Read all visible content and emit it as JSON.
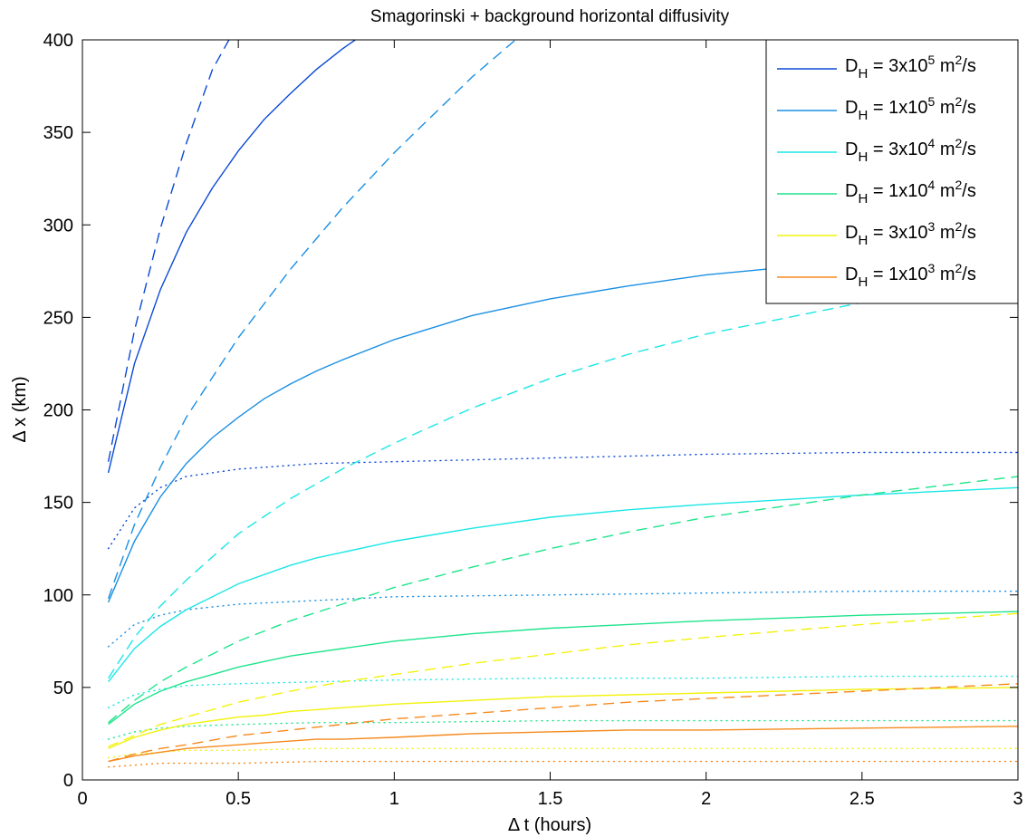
{
  "chart_data": {
    "type": "line",
    "title": "Smagorinski + background horizontal diffusivity",
    "xlabel": "Δ t (hours)",
    "ylabel": "Δ x (km)",
    "xlim": [
      0,
      3
    ],
    "ylim": [
      0,
      400
    ],
    "xticks": [
      0,
      0.5,
      1,
      1.5,
      2,
      2.5,
      3
    ],
    "xtick_labels": [
      "0",
      "0.5",
      "1",
      "1.5",
      "2",
      "2.5",
      "3"
    ],
    "yticks": [
      0,
      50,
      100,
      150,
      200,
      250,
      300,
      350,
      400
    ],
    "ytick_labels": [
      "0",
      "50",
      "100",
      "150",
      "200",
      "250",
      "300",
      "350",
      "400"
    ],
    "grid": false,
    "legend_position": "top-right",
    "legend": [
      {
        "prefix": "D",
        "sub": "H",
        "mid": " = 3x10",
        "sup": "5",
        "mid2": " m",
        "sup2": "2",
        "suffix": "/s",
        "color": "#0b49d6"
      },
      {
        "prefix": "D",
        "sub": "H",
        "mid": " = 1x10",
        "sup": "5",
        "mid2": " m",
        "sup2": "2",
        "suffix": "/s",
        "color": "#1a8fe3"
      },
      {
        "prefix": "D",
        "sub": "H",
        "mid": " = 3x10",
        "sup": "4",
        "mid2": " m",
        "sup2": "2",
        "suffix": "/s",
        "color": "#1de6e6"
      },
      {
        "prefix": "D",
        "sub": "H",
        "mid": " = 1x10",
        "sup": "4",
        "mid2": " m",
        "sup2": "2",
        "suffix": "/s",
        "color": "#1ee48c"
      },
      {
        "prefix": "D",
        "sub": "H",
        "mid": " = 3x10",
        "sup": "3",
        "mid2": " m",
        "sup2": "2",
        "suffix": "/s",
        "color": "#f2f20c"
      },
      {
        "prefix": "D",
        "sub": "H",
        "mid": " = 1x10",
        "sup": "3",
        "mid2": " m",
        "sup2": "2",
        "suffix": "/s",
        "color": "#f58a1e"
      }
    ],
    "series": [
      {
        "color": "#0b49d6",
        "style": "solid",
        "x": [
          0.083,
          0.167,
          0.25,
          0.333,
          0.417,
          0.5,
          0.583,
          0.667,
          0.75,
          0.833,
          0.875
        ],
        "y": [
          166,
          225,
          265,
          296,
          320,
          340,
          357,
          371,
          384,
          395,
          400
        ]
      },
      {
        "color": "#0b49d6",
        "style": "dashed",
        "x": [
          0.083,
          0.167,
          0.25,
          0.333,
          0.417,
          0.47
        ],
        "y": [
          172,
          243,
          298,
          344,
          384,
          400
        ]
      },
      {
        "color": "#0b49d6",
        "style": "dotted",
        "x": [
          0.083,
          0.167,
          0.25,
          0.333,
          0.5,
          0.75,
          1,
          1.5,
          2,
          2.5,
          3
        ],
        "y": [
          125,
          147,
          158,
          164,
          168,
          171,
          172,
          174,
          176,
          177,
          177
        ]
      },
      {
        "color": "#1a8fe3",
        "style": "solid",
        "x": [
          0.083,
          0.167,
          0.25,
          0.333,
          0.417,
          0.5,
          0.583,
          0.667,
          0.75,
          0.833,
          1,
          1.25,
          1.5,
          1.75,
          2,
          2.5,
          3
        ],
        "y": [
          96,
          129,
          153,
          171,
          185,
          196,
          206,
          214,
          221,
          227,
          238,
          251,
          260,
          267,
          273,
          281,
          288
        ]
      },
      {
        "color": "#1a8fe3",
        "style": "dashed",
        "x": [
          0.083,
          0.167,
          0.25,
          0.333,
          0.5,
          0.667,
          0.833,
          1,
          1.25,
          1.5,
          1.6
        ],
        "y": [
          98,
          138,
          169,
          196,
          239,
          276,
          309,
          339,
          380,
          416,
          432
        ]
      },
      {
        "color": "#1a8fe3",
        "style": "dotted",
        "x": [
          0.083,
          0.167,
          0.25,
          0.333,
          0.5,
          0.75,
          1,
          1.5,
          2,
          2.5,
          3
        ],
        "y": [
          72,
          84,
          89,
          92,
          95,
          97,
          99,
          100,
          101,
          102,
          102
        ]
      },
      {
        "color": "#1de6e6",
        "style": "solid",
        "x": [
          0.083,
          0.167,
          0.25,
          0.333,
          0.417,
          0.5,
          0.583,
          0.667,
          0.75,
          0.833,
          1,
          1.25,
          1.5,
          1.75,
          2,
          2.5,
          3
        ],
        "y": [
          53,
          71,
          83,
          92,
          99,
          106,
          111,
          116,
          120,
          123,
          129,
          136,
          142,
          146,
          149,
          154,
          158
        ]
      },
      {
        "color": "#1de6e6",
        "style": "dashed",
        "x": [
          0.083,
          0.167,
          0.25,
          0.333,
          0.5,
          0.667,
          0.833,
          1,
          1.25,
          1.5,
          1.75,
          2,
          2.5,
          3
        ],
        "y": [
          55,
          77,
          94,
          108,
          133,
          152,
          168,
          182,
          201,
          217,
          230,
          241,
          258,
          271
        ]
      },
      {
        "color": "#1de6e6",
        "style": "dotted",
        "x": [
          0.083,
          0.167,
          0.25,
          0.333,
          0.5,
          0.75,
          1,
          1.5,
          2,
          2.5,
          3
        ],
        "y": [
          39,
          46,
          49,
          51,
          52,
          53,
          54,
          55,
          55,
          56,
          56
        ]
      },
      {
        "color": "#1ee48c",
        "style": "solid",
        "x": [
          0.083,
          0.167,
          0.25,
          0.333,
          0.417,
          0.5,
          0.583,
          0.667,
          0.75,
          0.833,
          1,
          1.25,
          1.5,
          1.75,
          2,
          2.5,
          3
        ],
        "y": [
          30,
          41,
          48,
          53,
          57,
          61,
          64,
          67,
          69,
          71,
          75,
          79,
          82,
          84,
          86,
          89,
          91
        ]
      },
      {
        "color": "#1ee48c",
        "style": "dashed",
        "x": [
          0.083,
          0.167,
          0.25,
          0.333,
          0.5,
          0.667,
          0.833,
          1,
          1.25,
          1.5,
          1.75,
          2,
          2.5,
          3
        ],
        "y": [
          31,
          43,
          53,
          61,
          75,
          86,
          95,
          104,
          115,
          125,
          134,
          142,
          154,
          164
        ]
      },
      {
        "color": "#1ee48c",
        "style": "dotted",
        "x": [
          0.083,
          0.167,
          0.25,
          0.333,
          0.5,
          0.75,
          1,
          1.5,
          2,
          2.5,
          3
        ],
        "y": [
          22,
          26,
          28,
          29,
          30,
          31,
          31,
          32,
          32,
          32,
          32
        ]
      },
      {
        "color": "#f2f20c",
        "style": "solid",
        "x": [
          0.083,
          0.167,
          0.25,
          0.333,
          0.417,
          0.5,
          0.583,
          0.667,
          0.75,
          0.833,
          1,
          1.25,
          1.5,
          1.75,
          2,
          2.5,
          3
        ],
        "y": [
          17,
          23,
          27,
          30,
          32,
          34,
          35,
          37,
          38,
          39,
          41,
          43,
          45,
          46,
          47,
          49,
          50
        ]
      },
      {
        "color": "#f2f20c",
        "style": "dashed",
        "x": [
          0.083,
          0.167,
          0.25,
          0.333,
          0.5,
          0.667,
          0.833,
          1,
          1.25,
          1.5,
          1.75,
          2,
          2.5,
          3
        ],
        "y": [
          18,
          24,
          30,
          34,
          42,
          48,
          53,
          57,
          63,
          68,
          73,
          77,
          84,
          90
        ]
      },
      {
        "color": "#f2f20c",
        "style": "dotted",
        "x": [
          0.083,
          0.167,
          0.25,
          0.333,
          0.5,
          0.75,
          1,
          1.5,
          2,
          2.5,
          3
        ],
        "y": [
          12,
          14,
          15,
          16,
          16,
          17,
          17,
          17,
          17,
          17,
          17
        ]
      },
      {
        "color": "#f58a1e",
        "style": "solid",
        "x": [
          0.083,
          0.167,
          0.25,
          0.333,
          0.417,
          0.5,
          0.583,
          0.667,
          0.75,
          0.833,
          1,
          1.25,
          1.5,
          1.75,
          2,
          2.5,
          3
        ],
        "y": [
          10,
          13,
          15,
          17,
          18,
          19,
          20,
          21,
          22,
          22,
          23,
          25,
          26,
          27,
          27,
          28,
          29
        ]
      },
      {
        "color": "#f58a1e",
        "style": "dashed",
        "x": [
          0.083,
          0.167,
          0.25,
          0.333,
          0.5,
          0.667,
          0.833,
          1,
          1.25,
          1.5,
          1.75,
          2,
          2.5,
          3
        ],
        "y": [
          10,
          14,
          17,
          19,
          24,
          27,
          30,
          33,
          36,
          39,
          42,
          44,
          48,
          52
        ]
      },
      {
        "color": "#f58a1e",
        "style": "dotted",
        "x": [
          0.083,
          0.167,
          0.25,
          0.333,
          0.5,
          0.75,
          1,
          1.5,
          2,
          2.5,
          3
        ],
        "y": [
          7,
          8,
          9,
          9,
          9,
          10,
          10,
          10,
          10,
          10,
          10
        ]
      }
    ]
  }
}
